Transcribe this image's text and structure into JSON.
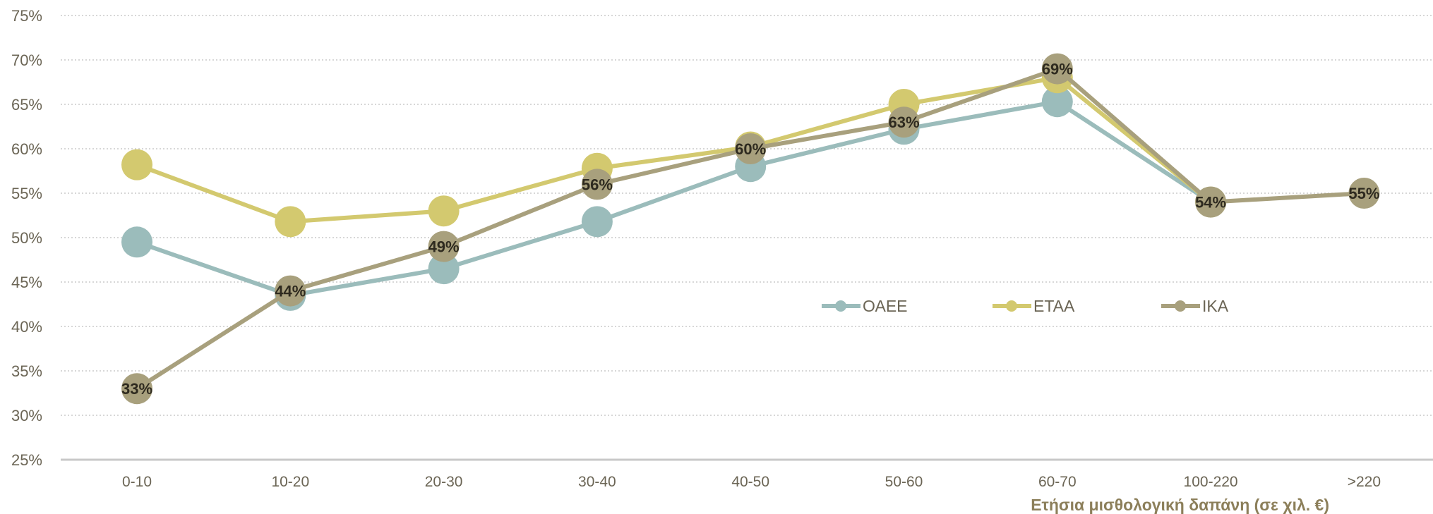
{
  "chart_data": {
    "type": "line",
    "categories": [
      "0-10",
      "10-20",
      "20-30",
      "30-40",
      "40-50",
      "50-60",
      "60-70",
      "100-220",
      ">220"
    ],
    "xlabel": "Ετήσια μισθολογική δαπάνη (σε χιλ. €)",
    "ylabel": "",
    "ylim": [
      25,
      75
    ],
    "ytick_values": [
      25,
      30,
      35,
      40,
      45,
      50,
      55,
      60,
      65,
      70,
      75
    ],
    "ytick_labels": [
      "25%",
      "30%",
      "35%",
      "40%",
      "45%",
      "50%",
      "55%",
      "60%",
      "65%",
      "70%",
      "75%"
    ],
    "grid": true,
    "legend_position": "center-right",
    "series": [
      {
        "name": "ΟΑΕΕ",
        "color": "#9bbcbb",
        "values": [
          49.5,
          43.5,
          46.5,
          51.8,
          58.0,
          62.2,
          65.3,
          54.0,
          null
        ]
      },
      {
        "name": "ΕΤΑΑ",
        "color": "#d3c96f",
        "values": [
          58.2,
          51.8,
          53.0,
          57.8,
          60.2,
          65.0,
          68.0,
          54.0,
          null
        ]
      },
      {
        "name": "ΙΚΑ",
        "color": "#a8a07d",
        "values": [
          33,
          44,
          49,
          56,
          60,
          63,
          69,
          54,
          55
        ],
        "data_labels": [
          "33%",
          "44%",
          "49%",
          "56%",
          "60%",
          "63%",
          "69%",
          "54%",
          "55%"
        ]
      }
    ]
  }
}
